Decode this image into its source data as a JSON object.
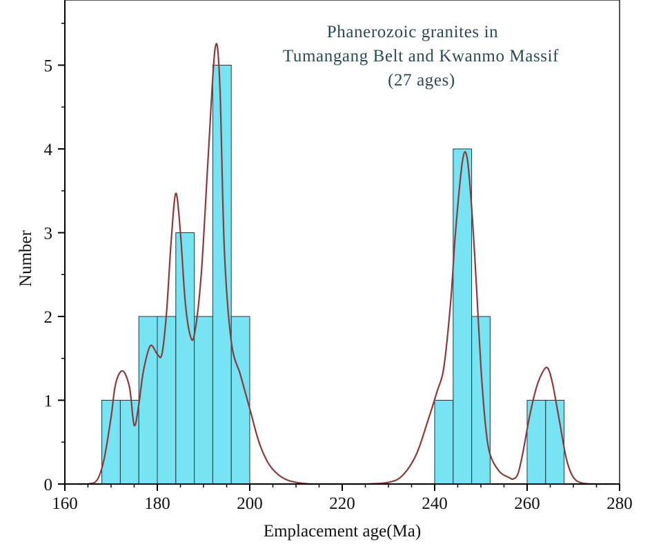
{
  "chart_data": {
    "type": "bar",
    "title_lines": [
      "Phanerozoic granites in",
      "Tumangang Belt and Kwanmo Massif",
      "(27 ages)"
    ],
    "xlabel": "Emplacement age(Ma)",
    "ylabel": "Number",
    "xlim": [
      160,
      280
    ],
    "ylim": [
      0,
      5.75
    ],
    "xticks": [
      160,
      180,
      200,
      220,
      240,
      260,
      280
    ],
    "yticks": [
      0,
      1,
      2,
      3,
      4,
      5
    ],
    "bin_width": 4,
    "bins": [
      {
        "start": 168,
        "end": 172,
        "count": 1
      },
      {
        "start": 172,
        "end": 176,
        "count": 1
      },
      {
        "start": 176,
        "end": 180,
        "count": 2
      },
      {
        "start": 180,
        "end": 184,
        "count": 2
      },
      {
        "start": 184,
        "end": 188,
        "count": 3
      },
      {
        "start": 188,
        "end": 192,
        "count": 2
      },
      {
        "start": 192,
        "end": 196,
        "count": 5
      },
      {
        "start": 196,
        "end": 200,
        "count": 2
      },
      {
        "start": 240,
        "end": 244,
        "count": 1
      },
      {
        "start": 244,
        "end": 248,
        "count": 4
      },
      {
        "start": 248,
        "end": 252,
        "count": 2
      },
      {
        "start": 260,
        "end": 264,
        "count": 1
      },
      {
        "start": 264,
        "end": 268,
        "count": 1
      }
    ],
    "density_curve": {
      "name": "probability density",
      "x": [
        163,
        165,
        167,
        168.5,
        170,
        171,
        172.5,
        174,
        175,
        176,
        177,
        178.5,
        180,
        181,
        182,
        183,
        184,
        185,
        186,
        187,
        188,
        189.5,
        191,
        192.5,
        193.5,
        194.5,
        196,
        198,
        200,
        202,
        204,
        206,
        208,
        210,
        213,
        216,
        220,
        225,
        230,
        233,
        236,
        238.5,
        240.5,
        242,
        243.5,
        244.5,
        246,
        247,
        248,
        249,
        250,
        251,
        252,
        254,
        256,
        257,
        258,
        259,
        260.5,
        262,
        263.5,
        264.5,
        265.5,
        267,
        268.5,
        270,
        272,
        275,
        279
      ],
      "y": [
        0,
        0,
        0.05,
        0.3,
        0.8,
        1.2,
        1.35,
        1.15,
        0.7,
        0.95,
        1.35,
        1.65,
        1.55,
        1.55,
        2.05,
        2.9,
        3.47,
        3.0,
        2.2,
        1.8,
        1.78,
        2.5,
        3.9,
        5.2,
        4.8,
        2.8,
        1.7,
        1.3,
        0.9,
        0.5,
        0.25,
        0.12,
        0.05,
        0.02,
        0,
        0,
        0,
        0,
        0.02,
        0.1,
        0.35,
        0.75,
        1.1,
        1.4,
        2.2,
        3.0,
        3.85,
        3.9,
        3.3,
        2.4,
        1.4,
        0.7,
        0.35,
        0.15,
        0.08,
        0.06,
        0.12,
        0.35,
        0.8,
        1.15,
        1.35,
        1.38,
        1.2,
        0.75,
        0.3,
        0.08,
        0.01,
        0,
        0
      ]
    },
    "colors": {
      "bar_fill": "#4fdcf0",
      "bar_edge": "#1d3a44",
      "curve": "#8b3a3a",
      "title": "#2c4a55",
      "axis": "#000000",
      "frame": "#555555"
    }
  }
}
